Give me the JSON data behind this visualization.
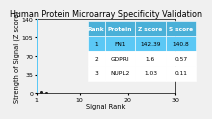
{
  "title": "Human Protein Microarray Specificity Validation",
  "xlabel": "Signal Rank",
  "ylabel": "Strength of Signal (Z score)",
  "xlim": [
    1,
    30
  ],
  "ylim": [
    0,
    140
  ],
  "yticks": [
    0,
    35,
    70,
    105,
    140
  ],
  "xticks": [
    1,
    10,
    20,
    30
  ],
  "bar_x": 1,
  "bar_height": 142.39,
  "scatter_x": [
    2,
    3
  ],
  "scatter_y": [
    1.6,
    1.03
  ],
  "bar_color": "#5bc8f5",
  "scatter_color": "#222222",
  "bg_color": "#f0f0f0",
  "table_data": [
    [
      "1",
      "FN1",
      "142.39",
      "140.8"
    ],
    [
      "2",
      "GDPRI",
      "1.6",
      "0.57"
    ],
    [
      "3",
      "NUPL2",
      "1.03",
      "0.11"
    ]
  ],
  "table_headers": [
    "Rank",
    "Protein",
    "Z score",
    "S score"
  ],
  "table_header_bg": "#4ab0d8",
  "table_row1_bg": "#5bc8f5",
  "table_row_bg": "#ffffff",
  "title_fontsize": 5.8,
  "axis_fontsize": 4.8,
  "tick_fontsize": 4.5,
  "table_fontsize": 4.2
}
